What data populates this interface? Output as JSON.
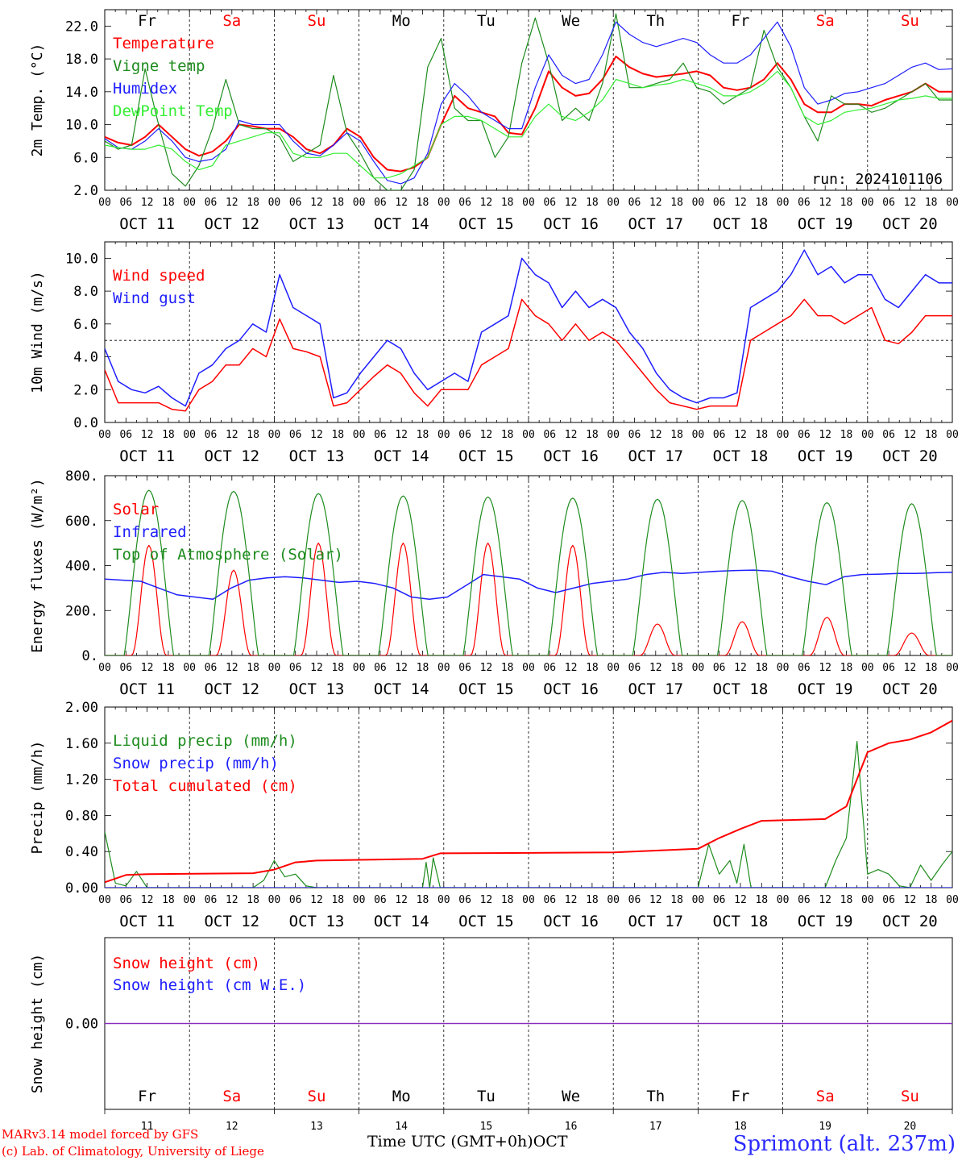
{
  "footer": {
    "credit_line1": "MARv3.14 model forced by GFS",
    "credit_line2": "(c) Lab. of Climatology, University of Liege",
    "time_axis_label": "Time UTC (GMT+0h)",
    "month_label": "OCT",
    "location": "Sprimont (alt. 237m)"
  },
  "days": {
    "weekday_labels": [
      "Fr",
      "Sa",
      "Su",
      "Mo",
      "Tu",
      "We",
      "Th",
      "Fr",
      "Sa",
      "Su"
    ],
    "weekend_flags": [
      false,
      true,
      true,
      false,
      false,
      false,
      false,
      false,
      true,
      true
    ],
    "date_labels": [
      "OCT 11",
      "OCT 12",
      "OCT 13",
      "OCT 14",
      "OCT 15",
      "OCT 16",
      "OCT 17",
      "OCT 18",
      "OCT 19",
      "OCT 20"
    ],
    "day_numbers": [
      "11",
      "12",
      "13",
      "14",
      "15",
      "16",
      "17",
      "18",
      "19",
      "20"
    ],
    "hour_ticks": [
      "00",
      "06",
      "12",
      "18"
    ],
    "final_hour_tick": "00"
  },
  "colors": {
    "red": "#ff0000",
    "darkgreen": "#1e8c1e",
    "blue": "#1e1eff",
    "lightgreen": "#33ee33",
    "purple": "#8a2bbe"
  },
  "chart_data": [
    {
      "type": "line",
      "ylabel": "2m Temp. (°C)",
      "ylim": [
        2,
        24
      ],
      "yticks": [
        "2.0",
        "6.0",
        "10.0",
        "14.0",
        "18.0",
        "22.0"
      ],
      "yticks_values": [
        2,
        6,
        10,
        14,
        18,
        22
      ],
      "annotation": "run: 2024101106",
      "show_weekdays_top": true,
      "x_hours": [
        0,
        3,
        6,
        9,
        12,
        15,
        18,
        21,
        24,
        27,
        30,
        33,
        36,
        39,
        42,
        45,
        48,
        51,
        54,
        57,
        60,
        63,
        66,
        69,
        72,
        75,
        78,
        81,
        84,
        87,
        90,
        93,
        96,
        99,
        102,
        105,
        108,
        111,
        114,
        117,
        120,
        123,
        126,
        129,
        132,
        135,
        138,
        141,
        144,
        147,
        150,
        153,
        156,
        159,
        162,
        165,
        168,
        171,
        174,
        177,
        180,
        183,
        186,
        189,
        192,
        195,
        198,
        201,
        204,
        207,
        210,
        213,
        216,
        219,
        222,
        225,
        228,
        231,
        234,
        237,
        240
      ],
      "series": [
        {
          "name": "Temperature",
          "color": "red",
          "values": [
            8.5,
            7.8,
            7.5,
            8.5,
            10.0,
            8.5,
            7.0,
            6.2,
            6.7,
            8.0,
            10.0,
            9.8,
            9.5,
            9.5,
            8.5,
            7.0,
            6.5,
            7.5,
            9.5,
            8.5,
            6.0,
            4.5,
            4.3,
            4.8,
            6.0,
            10.0,
            13.5,
            12.0,
            11.5,
            11.0,
            9.0,
            8.8,
            12.0,
            16.5,
            14.5,
            13.5,
            13.8,
            15.5,
            18.3,
            17.0,
            16.2,
            15.8,
            16.0,
            16.2,
            16.5,
            16.0,
            14.5,
            14.2,
            14.5,
            15.5,
            17.5,
            15.5,
            12.5,
            11.5,
            11.5,
            12.5,
            12.5,
            12.3,
            13.0,
            13.5,
            14.0,
            15.0,
            14.0,
            14.0
          ]
        },
        {
          "name": "Vigne temp",
          "color": "darkgreen",
          "values": [
            8.0,
            7.0,
            7.5,
            16.8,
            10.0,
            4.0,
            2.5,
            5.0,
            9.5,
            15.5,
            10.0,
            9.5,
            9.5,
            8.5,
            5.5,
            6.5,
            7.5,
            16.0,
            9.0,
            6.5,
            3.5,
            2.0,
            2.0,
            4.5,
            17.0,
            20.5,
            12.0,
            10.5,
            10.5,
            6.0,
            8.5,
            17.5,
            23.0,
            17.5,
            10.5,
            12.0,
            10.5,
            15.0,
            23.5,
            14.5,
            14.5,
            15.0,
            15.5,
            17.5,
            14.5,
            14.0,
            12.5,
            13.5,
            14.5,
            21.5,
            17.0,
            14.5,
            11.0,
            8.0,
            13.5,
            12.5,
            12.5,
            11.5,
            12.0,
            13.0,
            14.0,
            15.0,
            13.0,
            13.0
          ]
        },
        {
          "name": "Humidex",
          "color": "blue",
          "values": [
            8.3,
            7.2,
            7.0,
            8.0,
            9.5,
            8.0,
            6.0,
            5.5,
            5.8,
            7.0,
            10.5,
            10.0,
            10.0,
            10.0,
            8.0,
            6.5,
            6.2,
            7.5,
            9.0,
            8.0,
            5.5,
            3.2,
            2.8,
            3.5,
            6.5,
            12.5,
            15.0,
            13.5,
            11.5,
            10.5,
            9.5,
            9.5,
            14.5,
            18.5,
            16.0,
            15.0,
            15.5,
            18.5,
            22.5,
            21.0,
            20.0,
            19.5,
            20.0,
            20.5,
            20.0,
            18.5,
            17.5,
            17.5,
            18.5,
            20.5,
            22.5,
            19.5,
            14.5,
            12.5,
            13.0,
            13.8,
            14.0,
            14.5,
            15.0,
            16.0,
            17.0,
            17.5,
            16.7,
            16.8
          ]
        },
        {
          "name": "DewPoint Temp",
          "color": "lightgreen",
          "values": [
            7.5,
            7.2,
            7.0,
            7.0,
            7.5,
            7.0,
            5.5,
            4.5,
            5.0,
            7.5,
            8.0,
            8.5,
            9.0,
            9.0,
            6.5,
            6.0,
            6.0,
            6.5,
            6.5,
            5.0,
            3.5,
            3.5,
            4.0,
            5.0,
            6.0,
            10.0,
            11.0,
            11.0,
            10.5,
            9.5,
            8.5,
            8.5,
            11.0,
            12.5,
            11.0,
            10.5,
            11.5,
            13.0,
            15.5,
            15.0,
            14.5,
            14.8,
            15.0,
            15.5,
            15.0,
            14.5,
            13.5,
            13.5,
            14.0,
            15.0,
            16.5,
            14.5,
            11.0,
            10.0,
            10.5,
            11.5,
            11.8,
            12.0,
            12.5,
            13.0,
            13.2,
            13.5,
            13.2,
            13.2
          ]
        }
      ],
      "x_values_note_indices": []
    },
    {
      "type": "line",
      "ylabel": "10m Wind (m/s)",
      "ylim": [
        0,
        11
      ],
      "yticks": [
        "0.0",
        "2.0",
        "4.0",
        "6.0",
        "8.0",
        "10.0"
      ],
      "yticks_values": [
        0,
        2,
        4,
        6,
        8,
        10
      ],
      "reference_line": 5,
      "series": [
        {
          "name": "Wind speed",
          "color": "red",
          "values": [
            3.2,
            1.2,
            1.2,
            1.2,
            1.2,
            0.8,
            0.7,
            2.0,
            2.5,
            3.5,
            3.5,
            4.5,
            4.0,
            6.3,
            4.5,
            4.3,
            4.0,
            1.0,
            1.2,
            2.0,
            2.8,
            3.5,
            3.0,
            1.8,
            1.0,
            2.0,
            2.0,
            2.0,
            3.5,
            4.0,
            4.5,
            7.5,
            6.5,
            6.0,
            5.0,
            6.0,
            5.0,
            5.5,
            5.0,
            4.0,
            3.0,
            2.0,
            1.2,
            1.0,
            0.8,
            1.0,
            1.0,
            1.0,
            5.0,
            5.5,
            6.0,
            6.5,
            7.5,
            6.5,
            6.5,
            6.0,
            6.5,
            7.0,
            5.0,
            4.8,
            5.5,
            6.5,
            6.5,
            6.5
          ]
        },
        {
          "name": "Wind gust",
          "color": "blue",
          "values": [
            4.5,
            2.5,
            2.0,
            1.8,
            2.2,
            1.5,
            1.0,
            3.0,
            3.5,
            4.5,
            5.0,
            6.0,
            5.5,
            9.0,
            7.0,
            6.5,
            6.0,
            1.5,
            1.8,
            3.0,
            4.0,
            5.0,
            4.5,
            3.0,
            2.0,
            2.5,
            3.0,
            2.5,
            5.5,
            6.0,
            6.5,
            10.0,
            9.0,
            8.5,
            7.0,
            8.0,
            7.0,
            7.5,
            7.0,
            5.5,
            4.5,
            3.0,
            2.0,
            1.5,
            1.2,
            1.5,
            1.5,
            1.8,
            7.0,
            7.5,
            8.0,
            9.0,
            10.5,
            9.0,
            9.5,
            8.5,
            9.0,
            9.0,
            7.5,
            7.0,
            8.0,
            9.0,
            8.5,
            8.5
          ]
        }
      ]
    },
    {
      "type": "line",
      "ylabel": "Energy fluxes (W/m²)",
      "ylim": [
        0,
        800
      ],
      "yticks": [
        "0.",
        "200.",
        "400.",
        "600.",
        "800."
      ],
      "yticks_values": [
        0,
        200,
        400,
        600,
        800
      ],
      "series": [
        {
          "name": "Solar",
          "color": "red",
          "daily_peaks": [
            490,
            380,
            500,
            500,
            500,
            490,
            140,
            150,
            170,
            100
          ]
        },
        {
          "name": "Infrared",
          "color": "blue",
          "values": [
            340,
            335,
            330,
            300,
            270,
            260,
            250,
            300,
            335,
            345,
            350,
            345,
            335,
            325,
            330,
            320,
            300,
            260,
            250,
            260,
            310,
            360,
            350,
            340,
            300,
            280,
            300,
            320,
            330,
            340,
            360,
            370,
            365,
            370,
            375,
            378,
            380,
            375,
            350,
            330,
            315,
            350,
            360,
            362,
            365,
            365,
            368,
            370
          ]
        },
        {
          "name": "Top of Atmosphere (Solar)",
          "color": "darkgreen",
          "daily_peaks": [
            735,
            730,
            720,
            710,
            705,
            700,
            695,
            690,
            680,
            675
          ]
        }
      ]
    },
    {
      "type": "line",
      "ylabel": "Precip (mm/h)",
      "ylim": [
        0,
        2
      ],
      "yticks": [
        "0.00",
        "0.40",
        "0.80",
        "1.20",
        "1.60",
        "2.00"
      ],
      "yticks_values": [
        0,
        0.4,
        0.8,
        1.2,
        1.6,
        2.0
      ],
      "series": [
        {
          "name": "Liquid precip (mm/h)",
          "color": "darkgreen",
          "points": [
            [
              0,
              0.62
            ],
            [
              3,
              0.05
            ],
            [
              6,
              0.02
            ],
            [
              9,
              0.18
            ],
            [
              12,
              0.0
            ],
            [
              42,
              0.0
            ],
            [
              45,
              0.08
            ],
            [
              48,
              0.3
            ],
            [
              51,
              0.12
            ],
            [
              54,
              0.15
            ],
            [
              57,
              0.02
            ],
            [
              60,
              0.0
            ],
            [
              90,
              0.0
            ],
            [
              91,
              0.28
            ],
            [
              92,
              0.0
            ],
            [
              93,
              0.33
            ],
            [
              95,
              0.0
            ],
            [
              168,
              0.0
            ],
            [
              171,
              0.48
            ],
            [
              174,
              0.15
            ],
            [
              177,
              0.3
            ],
            [
              179,
              0.05
            ],
            [
              181,
              0.48
            ],
            [
              183,
              0.0
            ],
            [
              204,
              0.0
            ],
            [
              207,
              0.3
            ],
            [
              210,
              0.55
            ],
            [
              213,
              1.62
            ],
            [
              216,
              0.15
            ],
            [
              219,
              0.2
            ],
            [
              222,
              0.15
            ],
            [
              225,
              0.02
            ],
            [
              228,
              0.0
            ],
            [
              231,
              0.25
            ],
            [
              234,
              0.08
            ],
            [
              237,
              0.25
            ],
            [
              240,
              0.4
            ]
          ]
        },
        {
          "name": "Snow precip (mm/h)",
          "color": "blue",
          "points": [
            [
              0,
              0.0
            ],
            [
              240,
              0.0
            ]
          ]
        },
        {
          "name": "Total cumulated (cm)",
          "color": "red",
          "points": [
            [
              0,
              0.06
            ],
            [
              6,
              0.14
            ],
            [
              12,
              0.15
            ],
            [
              42,
              0.16
            ],
            [
              48,
              0.2
            ],
            [
              54,
              0.28
            ],
            [
              60,
              0.3
            ],
            [
              90,
              0.32
            ],
            [
              95,
              0.38
            ],
            [
              144,
              0.39
            ],
            [
              168,
              0.43
            ],
            [
              174,
              0.55
            ],
            [
              180,
              0.65
            ],
            [
              186,
              0.74
            ],
            [
              204,
              0.76
            ],
            [
              210,
              0.9
            ],
            [
              216,
              1.5
            ],
            [
              222,
              1.6
            ],
            [
              228,
              1.64
            ],
            [
              234,
              1.72
            ],
            [
              240,
              1.85
            ]
          ]
        }
      ]
    },
    {
      "type": "line",
      "ylabel": "Snow height (cm)",
      "ylim": [
        -1,
        1
      ],
      "yticks": [
        "0.00"
      ],
      "yticks_values": [
        0
      ],
      "show_weekdays_bottom": true,
      "series": [
        {
          "name": "Snow height (cm)",
          "color": "red",
          "values": [
            0,
            0
          ]
        },
        {
          "name": "Snow height (cm W.E.)",
          "color": "blue",
          "values": [
            0,
            0
          ]
        }
      ]
    }
  ]
}
